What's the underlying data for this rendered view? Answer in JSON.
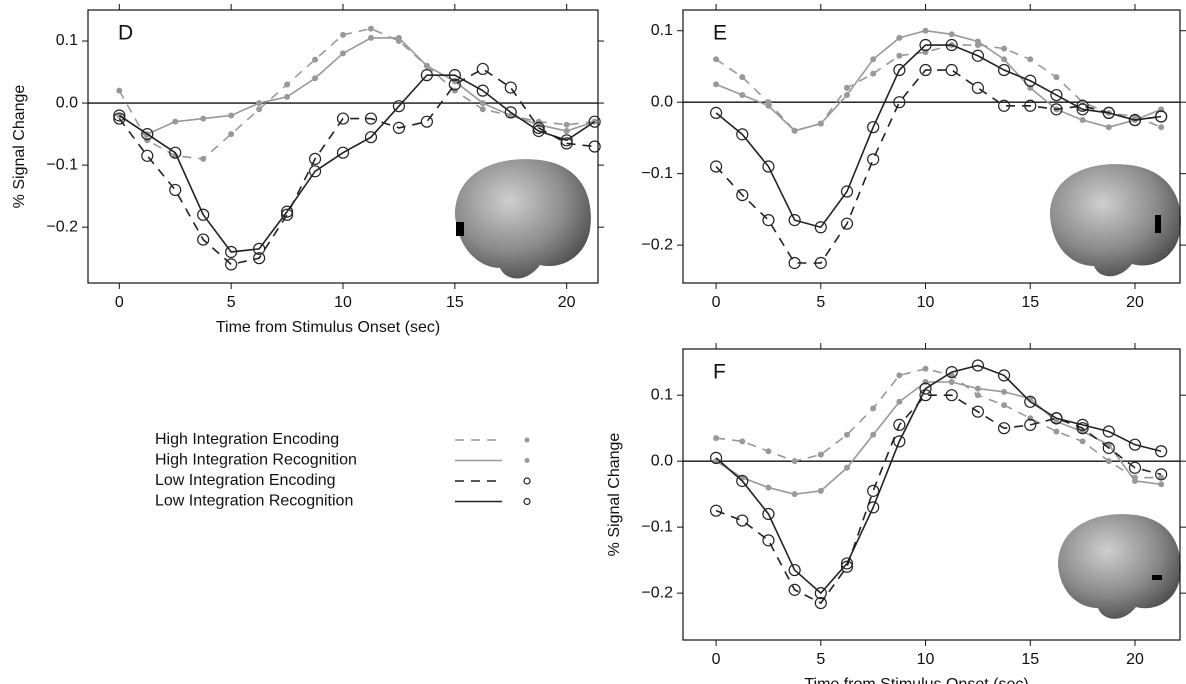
{
  "chart_data": [
    {
      "type": "line",
      "title": "D",
      "ylabel": "% Signal Change",
      "xlabel": "Time from Stimulus Onset (sec)",
      "x": [
        0,
        1.25,
        2.5,
        3.75,
        5,
        6.25,
        7.5,
        8.75,
        10,
        11.25,
        12.5,
        13.75,
        15,
        16.25,
        17.5,
        18.75,
        20,
        21.25
      ],
      "xlim": [
        -1.4,
        21.4
      ],
      "xticks": [
        0,
        5,
        10,
        15,
        20
      ],
      "ylim": [
        -0.29,
        0.15
      ],
      "yticks": [
        {
          "value": -0.2,
          "label": "−0.2"
        },
        {
          "value": -0.1,
          "label": "−0.1"
        },
        {
          "value": 0,
          "label": "0.0"
        },
        0.1
      ],
      "series": [
        {
          "name": "High Integration Encoding",
          "color": "#999999",
          "line_style": "dashed",
          "marker": "dot",
          "values": [
            0.02,
            -0.06,
            -0.085,
            -0.09,
            -0.05,
            -0.01,
            0.03,
            0.07,
            0.11,
            0.12,
            0.1,
            0.06,
            0.02,
            -0.01,
            -0.02,
            -0.03,
            -0.035,
            -0.03
          ]
        },
        {
          "name": "High Integration Recognition",
          "color": "#999999",
          "line_style": "solid",
          "marker": "dot",
          "values": [
            -0.02,
            -0.05,
            -0.03,
            -0.025,
            -0.02,
            0.0,
            0.01,
            0.04,
            0.08,
            0.105,
            0.105,
            0.06,
            0.035,
            0.0,
            -0.02,
            -0.035,
            -0.045,
            -0.03
          ]
        },
        {
          "name": "Low Integration Encoding",
          "color": "#222222",
          "line_style": "dashed",
          "marker": "open-circle",
          "values": [
            -0.025,
            -0.085,
            -0.14,
            -0.22,
            -0.26,
            -0.25,
            -0.18,
            -0.09,
            -0.025,
            -0.025,
            -0.04,
            -0.03,
            0.03,
            0.055,
            0.025,
            -0.04,
            -0.065,
            -0.07
          ]
        },
        {
          "name": "Low Integration Recognition",
          "color": "#222222",
          "line_style": "solid",
          "marker": "open-circle",
          "values": [
            -0.02,
            -0.05,
            -0.08,
            -0.18,
            -0.24,
            -0.235,
            -0.175,
            -0.11,
            -0.08,
            -0.055,
            -0.005,
            0.045,
            0.045,
            0.02,
            -0.015,
            -0.045,
            -0.06,
            -0.03
          ]
        }
      ]
    },
    {
      "type": "line",
      "title": "E",
      "x": [
        0,
        1.25,
        2.5,
        3.75,
        5,
        6.25,
        7.5,
        8.75,
        10,
        11.25,
        12.5,
        13.75,
        15,
        16.25,
        17.5,
        18.75,
        20,
        21.25
      ],
      "xlim": [
        -1.58,
        22.15
      ],
      "xticks": [
        0,
        5,
        10,
        15,
        20
      ],
      "ylim": [
        -0.253,
        0.129
      ],
      "yticks": [
        {
          "value": -0.2,
          "label": "−0.2"
        },
        {
          "value": -0.1,
          "label": "−0.1"
        },
        {
          "value": 0,
          "label": "0.0"
        },
        0.1
      ],
      "series": [
        {
          "color": "#999999",
          "line_style": "dashed",
          "marker": "dot",
          "values": [
            0.06,
            0.035,
            0.0,
            -0.04,
            -0.03,
            0.02,
            0.04,
            0.065,
            0.07,
            0.08,
            0.08,
            0.075,
            0.06,
            0.035,
            0.0,
            -0.015,
            -0.02,
            -0.035
          ]
        },
        {
          "color": "#999999",
          "line_style": "solid",
          "marker": "dot",
          "values": [
            0.025,
            0.01,
            -0.005,
            -0.04,
            -0.03,
            0.01,
            0.06,
            0.09,
            0.1,
            0.095,
            0.085,
            0.06,
            0.02,
            -0.01,
            -0.025,
            -0.035,
            -0.025,
            -0.01
          ]
        },
        {
          "color": "#222222",
          "line_style": "dashed",
          "marker": "open-circle",
          "values": [
            -0.09,
            -0.13,
            -0.165,
            -0.225,
            -0.225,
            -0.17,
            -0.08,
            0.0,
            0.045,
            0.045,
            0.02,
            -0.005,
            -0.005,
            -0.01,
            -0.005,
            -0.015,
            -0.025,
            -0.02
          ]
        },
        {
          "color": "#222222",
          "line_style": "solid",
          "marker": "open-circle",
          "values": [
            -0.015,
            -0.045,
            -0.09,
            -0.165,
            -0.175,
            -0.125,
            -0.035,
            0.045,
            0.08,
            0.08,
            0.065,
            0.045,
            0.03,
            0.01,
            -0.01,
            -0.015,
            -0.025,
            -0.02
          ]
        }
      ]
    },
    {
      "type": "line",
      "title": "F",
      "ylabel": "% Signal Change",
      "xlabel": "Time from Stimulus Onset (sec)",
      "x": [
        0,
        1.25,
        2.5,
        3.75,
        5,
        6.25,
        7.5,
        8.75,
        10,
        11.25,
        12.5,
        13.75,
        15,
        16.25,
        17.5,
        18.75,
        20,
        21.25
      ],
      "xlim": [
        -1.58,
        22.15
      ],
      "xticks": [
        0,
        5,
        10,
        15,
        20
      ],
      "ylim": [
        -0.271,
        0.17
      ],
      "yticks": [
        {
          "value": -0.2,
          "label": "−0.2"
        },
        {
          "value": -0.1,
          "label": "−0.1"
        },
        {
          "value": 0,
          "label": "0.0"
        },
        0.1
      ],
      "series": [
        {
          "color": "#999999",
          "line_style": "dashed",
          "marker": "dot",
          "values": [
            0.035,
            0.03,
            0.015,
            0.0,
            0.01,
            0.04,
            0.08,
            0.13,
            0.14,
            0.13,
            0.1,
            0.085,
            0.065,
            0.045,
            0.03,
            0.0,
            -0.025,
            -0.025
          ]
        },
        {
          "color": "#999999",
          "line_style": "solid",
          "marker": "dot",
          "values": [
            0.0,
            -0.025,
            -0.04,
            -0.05,
            -0.045,
            -0.01,
            0.04,
            0.09,
            0.12,
            0.12,
            0.11,
            0.105,
            0.095,
            0.06,
            0.045,
            0.025,
            -0.03,
            -0.035
          ]
        },
        {
          "color": "#222222",
          "line_style": "dashed",
          "marker": "open-circle",
          "values": [
            -0.075,
            -0.09,
            -0.12,
            -0.195,
            -0.215,
            -0.16,
            -0.045,
            0.055,
            0.1,
            0.1,
            0.075,
            0.05,
            0.055,
            0.065,
            0.05,
            0.02,
            -0.01,
            -0.02
          ]
        },
        {
          "color": "#222222",
          "line_style": "solid",
          "marker": "open-circle",
          "values": [
            0.005,
            -0.03,
            -0.08,
            -0.165,
            -0.2,
            -0.155,
            -0.07,
            0.03,
            0.11,
            0.135,
            0.145,
            0.13,
            0.09,
            0.065,
            0.055,
            0.045,
            0.025,
            0.015
          ]
        }
      ]
    }
  ]
}
